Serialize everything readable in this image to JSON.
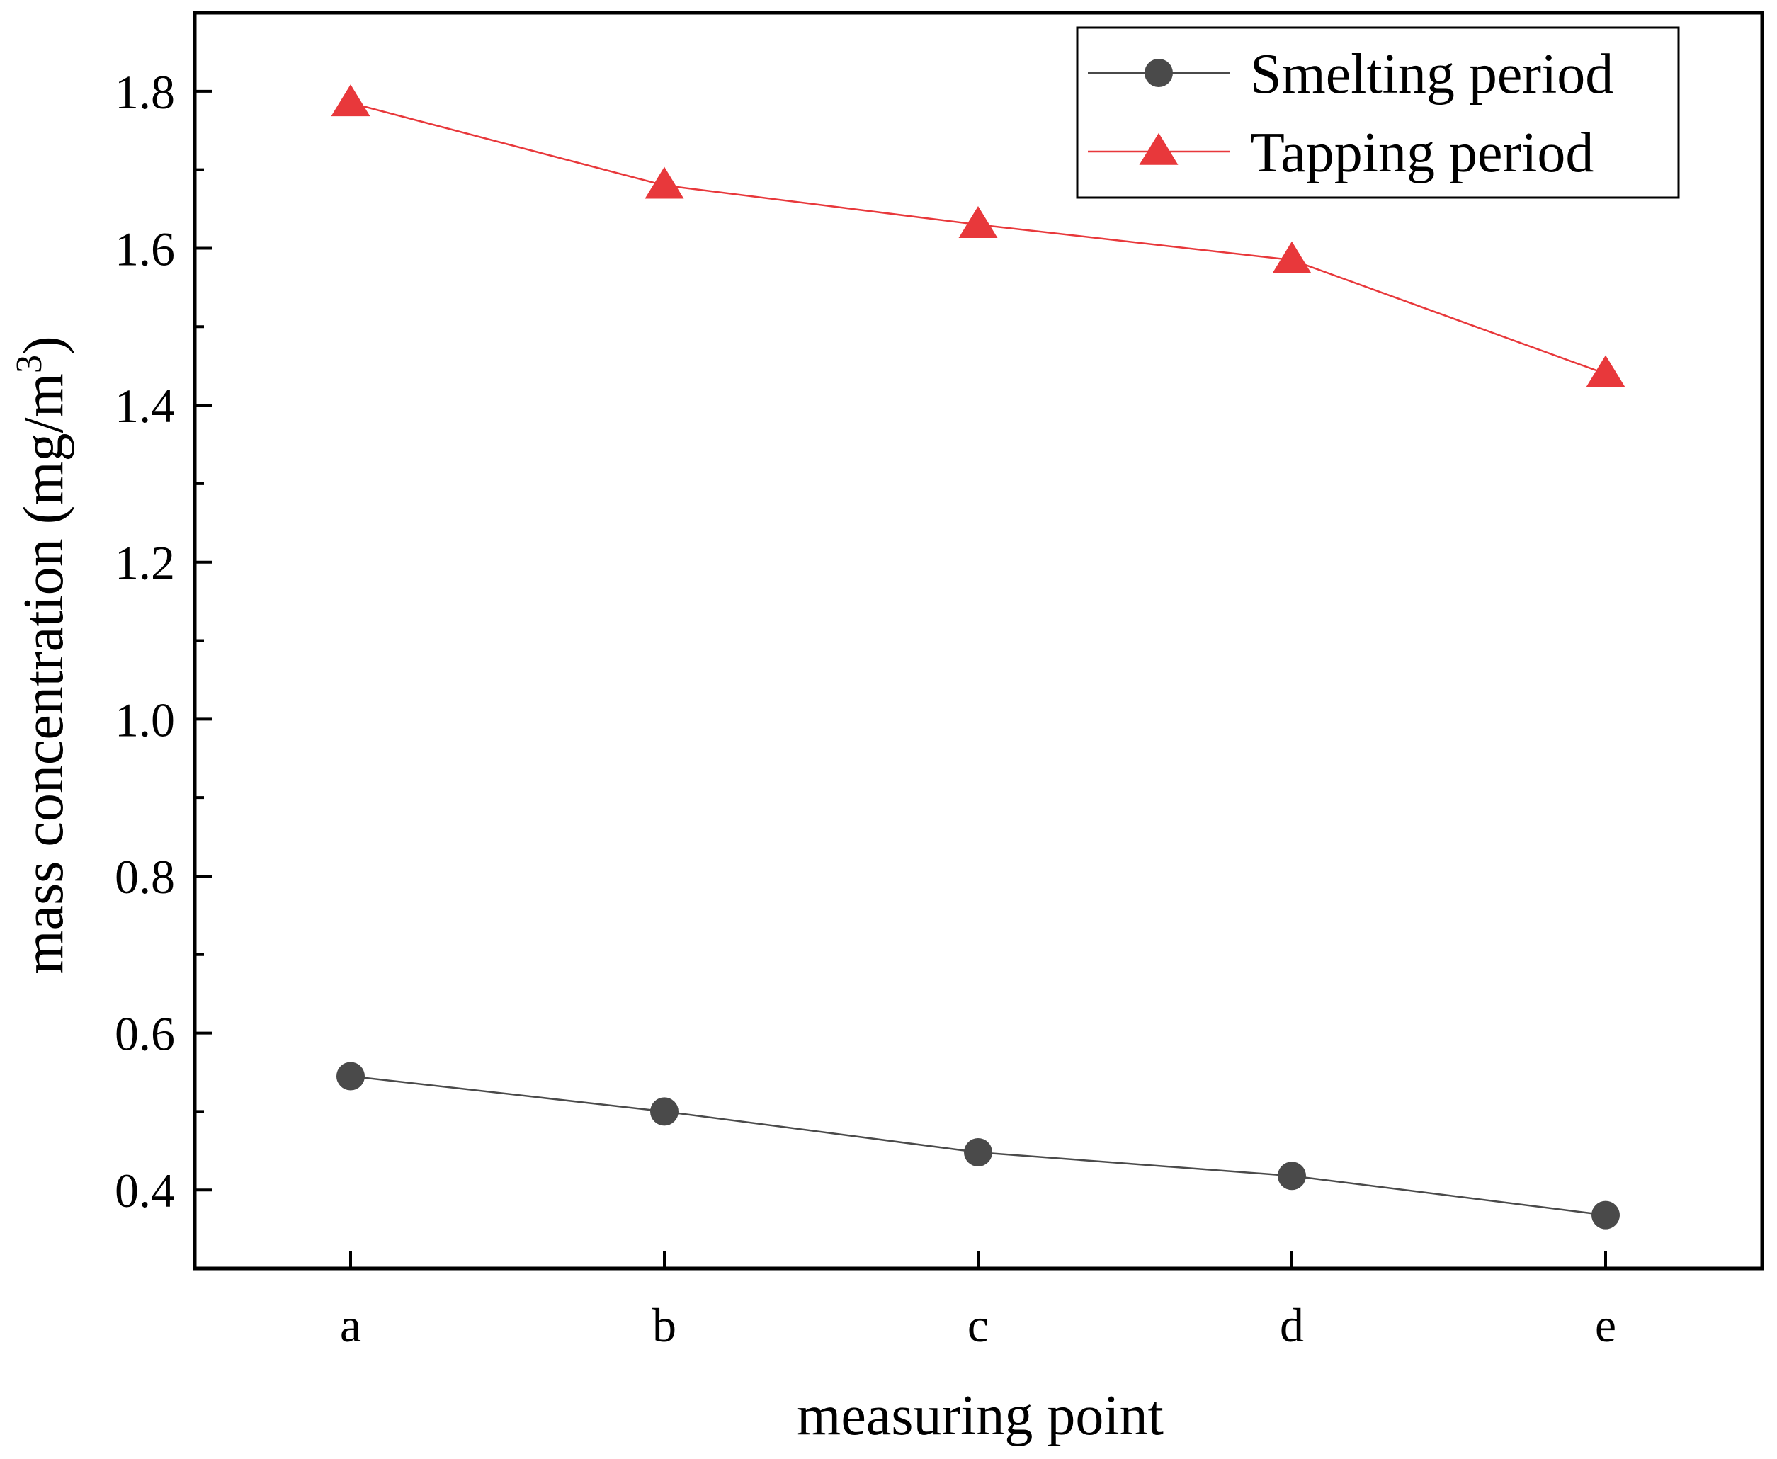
{
  "chart_data": {
    "type": "line",
    "title": "",
    "xlabel": "measuring point",
    "ylabel": "mass concentration (mg/m",
    "ylabel_superscript": "3",
    "ylabel_suffix": ")",
    "categories": [
      "a",
      "b",
      "c",
      "d",
      "e"
    ],
    "ylim": [
      0.3,
      1.9
    ],
    "yticks": [
      "0.4",
      "0.6",
      "0.8",
      "1.0",
      "1.2",
      "1.4",
      "1.6",
      "1.8"
    ],
    "grid": false,
    "legend_position": "top-right",
    "series": [
      {
        "name": "Smelting period",
        "marker": "circle",
        "color": "#4a4a4a",
        "values": [
          0.545,
          0.5,
          0.448,
          0.418,
          0.368
        ]
      },
      {
        "name": "Tapping period",
        "marker": "triangle",
        "color": "#e8383b",
        "values": [
          1.785,
          1.68,
          1.63,
          1.585,
          1.44
        ]
      }
    ]
  }
}
